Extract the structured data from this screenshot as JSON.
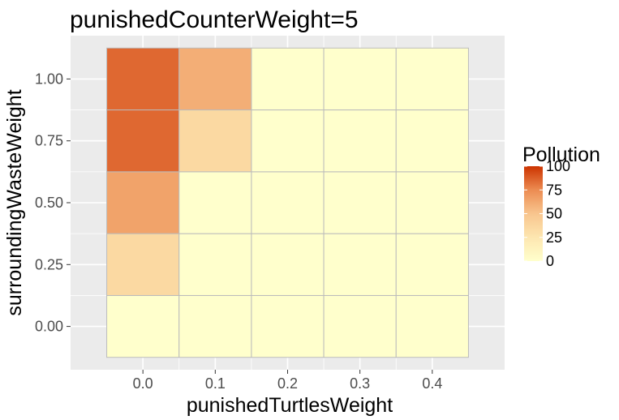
{
  "chart_data": {
    "type": "heatmap",
    "title": "punishedCounterWeight=5",
    "xlabel": "punishedTurtlesWeight",
    "ylabel": "surroundingWasteWeight",
    "x": [
      0.0,
      0.1,
      0.2,
      0.3,
      0.4
    ],
    "y": [
      0.0,
      0.25,
      0.5,
      0.75,
      1.0
    ],
    "x_tick_labels": [
      "0.0",
      "0.1",
      "0.2",
      "0.3",
      "0.4"
    ],
    "y_tick_labels": [
      "0.00",
      "0.25",
      "0.50",
      "0.75",
      "1.00"
    ],
    "values": [
      [
        0,
        0,
        0,
        0,
        0
      ],
      [
        35,
        0,
        0,
        0,
        0
      ],
      [
        65,
        0,
        0,
        0,
        0
      ],
      [
        85,
        35,
        0,
        0,
        0
      ],
      [
        85,
        60,
        0,
        0,
        0
      ]
    ],
    "values_note_rows": "rows indexed by y (0.00 first), columns by x",
    "legend": {
      "title": "Pollution",
      "ticks": [
        0,
        25,
        50,
        75,
        100
      ],
      "tick_labels": [
        "0",
        "25",
        "50",
        "75",
        "100"
      ],
      "range": [
        0,
        100
      ],
      "position": "right"
    },
    "colors": {
      "low": "#FFFFCC",
      "mid": "#F8C58E",
      "high": "#CC3300",
      "panel_bg": "#EBEBEB",
      "grid": "#FFFFFF",
      "tile_border": "#BBBBBB"
    },
    "grid": true
  }
}
